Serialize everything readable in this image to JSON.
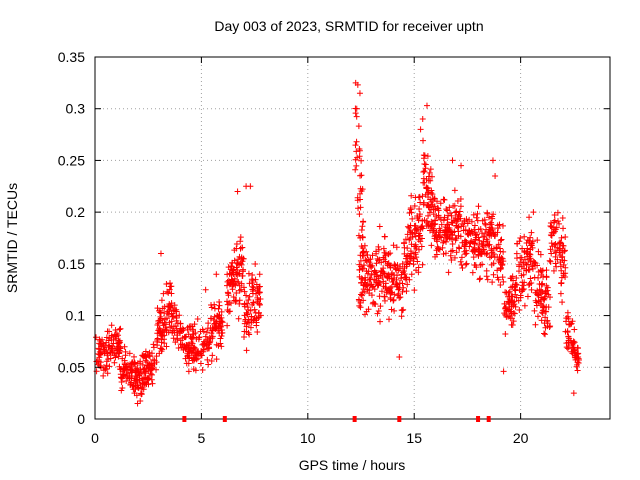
{
  "chart_data": {
    "type": "scatter",
    "title": "Day 003 of 2023, SRMTID for receiver uptn",
    "xlabel": "GPS time / hours",
    "ylabel": "SRMTID / TECUs",
    "xlim": [
      0,
      24.2
    ],
    "ylim": [
      0,
      0.35
    ],
    "grid": true,
    "x_ticks": [
      0,
      5,
      10,
      15,
      20
    ],
    "x_tick_labels": [
      "0",
      "5",
      "10",
      "15",
      "20"
    ],
    "y_ticks": [
      0,
      0.05,
      0.1,
      0.15,
      0.2,
      0.25,
      0.3,
      0.35
    ],
    "y_tick_labels": [
      "0",
      "0.05",
      "0.1",
      "0.15",
      "0.2",
      "0.25",
      "0.3",
      "0.35"
    ],
    "marker": "+",
    "color": "#ff0000",
    "series": [
      {
        "name": "SRMTID",
        "clusters": [
          {
            "x": [
              0.0,
              0.6
            ],
            "center": [
              0.065,
              0.065
            ],
            "spread": 0.02,
            "count": 60
          },
          {
            "x": [
              0.6,
              1.2
            ],
            "center": [
              0.07,
              0.075
            ],
            "spread": 0.02,
            "count": 60
          },
          {
            "x": [
              1.2,
              2.0
            ],
            "center": [
              0.05,
              0.04
            ],
            "spread": 0.018,
            "count": 80
          },
          {
            "x": [
              2.0,
              2.9
            ],
            "center": [
              0.035,
              0.06
            ],
            "spread": 0.02,
            "count": 90
          },
          {
            "x": [
              2.9,
              3.6
            ],
            "center": [
              0.08,
              0.115
            ],
            "spread": 0.025,
            "count": 80
          },
          {
            "x": [
              3.6,
              4.4
            ],
            "center": [
              0.095,
              0.075
            ],
            "spread": 0.018,
            "count": 70
          },
          {
            "x": [
              4.4,
              5.4
            ],
            "center": [
              0.07,
              0.07
            ],
            "spread": 0.022,
            "count": 90
          },
          {
            "x": [
              5.4,
              6.0
            ],
            "center": [
              0.08,
              0.095
            ],
            "spread": 0.025,
            "count": 60
          },
          {
            "x": [
              6.2,
              7.0
            ],
            "center": [
              0.13,
              0.145
            ],
            "spread": 0.035,
            "count": 90
          },
          {
            "x": [
              7.0,
              7.8
            ],
            "center": [
              0.1,
              0.12
            ],
            "spread": 0.03,
            "count": 80
          },
          {
            "x": [
              12.2,
              12.6
            ],
            "center": [
              0.3,
              0.17
            ],
            "spread": 0.06,
            "count": 40
          },
          {
            "x": [
              12.4,
              13.5
            ],
            "center": [
              0.14,
              0.14
            ],
            "spread": 0.035,
            "count": 110
          },
          {
            "x": [
              13.5,
              14.5
            ],
            "center": [
              0.14,
              0.125
            ],
            "spread": 0.03,
            "count": 100
          },
          {
            "x": [
              14.5,
              15.4
            ],
            "center": [
              0.15,
              0.19
            ],
            "spread": 0.04,
            "count": 100
          },
          {
            "x": [
              15.4,
              16.0
            ],
            "center": [
              0.24,
              0.19
            ],
            "spread": 0.04,
            "count": 80
          },
          {
            "x": [
              16.0,
              17.2
            ],
            "center": [
              0.18,
              0.19
            ],
            "spread": 0.03,
            "count": 120
          },
          {
            "x": [
              17.2,
              18.5
            ],
            "center": [
              0.17,
              0.17
            ],
            "spread": 0.03,
            "count": 120
          },
          {
            "x": [
              18.5,
              19.2
            ],
            "center": [
              0.18,
              0.15
            ],
            "spread": 0.035,
            "count": 70
          },
          {
            "x": [
              19.2,
              19.8
            ],
            "center": [
              0.1,
              0.12
            ],
            "spread": 0.025,
            "count": 60
          },
          {
            "x": [
              19.8,
              20.6
            ],
            "center": [
              0.14,
              0.16
            ],
            "spread": 0.035,
            "count": 80
          },
          {
            "x": [
              20.6,
              21.4
            ],
            "center": [
              0.13,
              0.11
            ],
            "spread": 0.035,
            "count": 80
          },
          {
            "x": [
              21.4,
              22.1
            ],
            "center": [
              0.18,
              0.15
            ],
            "spread": 0.035,
            "count": 70
          },
          {
            "x": [
              22.1,
              22.8
            ],
            "center": [
              0.09,
              0.055
            ],
            "spread": 0.02,
            "count": 60
          }
        ],
        "points": [
          [
            12.25,
            0.325
          ],
          [
            12.35,
            0.323
          ],
          [
            12.3,
            0.3
          ],
          [
            12.45,
            0.315
          ],
          [
            15.4,
            0.29
          ],
          [
            15.6,
            0.303
          ],
          [
            15.3,
            0.28
          ],
          [
            21.7,
            0.185
          ],
          [
            21.9,
            0.17
          ],
          [
            20.6,
            0.2
          ],
          [
            18.7,
            0.25
          ],
          [
            18.8,
            0.235
          ],
          [
            16.8,
            0.25
          ],
          [
            17.2,
            0.245
          ],
          [
            7.1,
            0.225
          ],
          [
            7.3,
            0.225
          ],
          [
            6.7,
            0.22
          ],
          [
            3.1,
            0.16
          ],
          [
            5.2,
            0.125
          ],
          [
            5.7,
            0.14
          ],
          [
            19.2,
            0.046
          ],
          [
            22.5,
            0.025
          ],
          [
            2.0,
            0.015
          ],
          [
            14.3,
            0.06
          ]
        ]
      }
    ],
    "gap_markers_x": [
      4.2,
      6.1,
      12.2,
      14.3,
      18.0,
      18.5
    ]
  }
}
